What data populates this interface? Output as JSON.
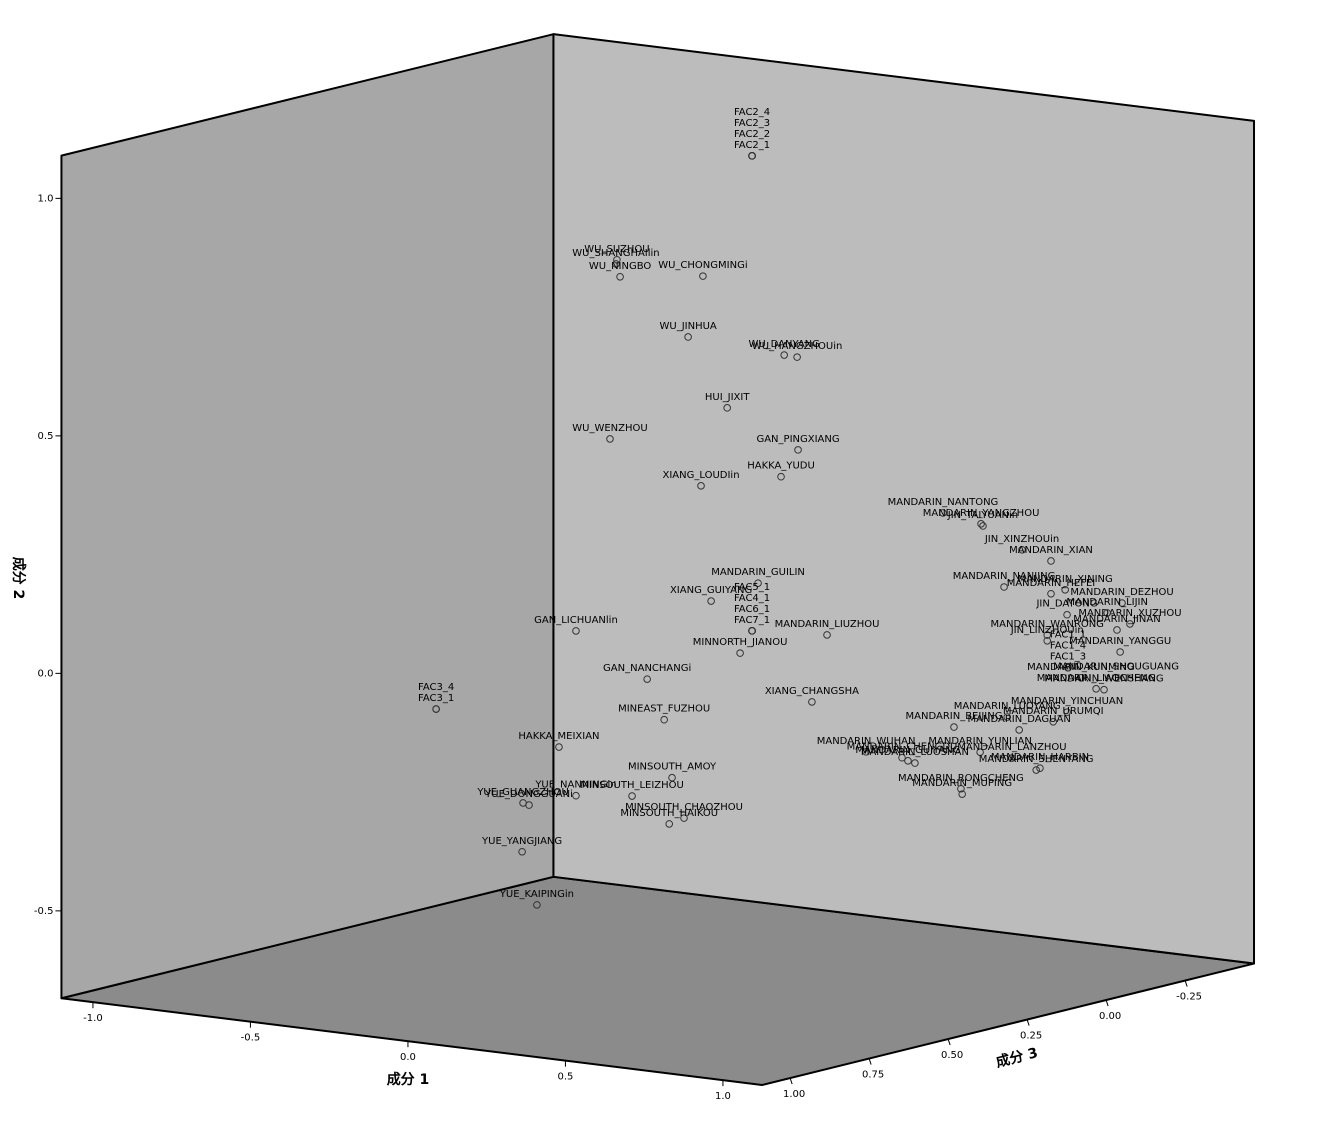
{
  "chart_data": {
    "type": "scatter3d",
    "x_label": "成分 1",
    "y_label": "成分 2",
    "z_label": "成分 3",
    "xlim": [
      -1.1,
      1.124
    ],
    "ylim": [
      -0.684,
      1.09
    ],
    "zlim": [
      -0.468,
      1.089
    ],
    "xticks": [
      {
        "value": -1.0,
        "label": "-1.0"
      },
      -0.5,
      {
        "value": 0.0,
        "label": "0.0"
      },
      0.5,
      {
        "value": 1.0,
        "label": "1.0"
      }
    ],
    "yticks": [
      {
        "value": -0.5,
        "label": "-0.5"
      },
      {
        "value": 0.0,
        "label": "0.0"
      },
      0.5,
      {
        "value": 1.0,
        "label": "1.0"
      }
    ],
    "zticks": [
      {
        "value": -0.25,
        "label": "-0.25"
      },
      {
        "value": 0.0,
        "label": "0.00"
      },
      0.25,
      {
        "value": 0.5,
        "label": "0.50"
      },
      0.75,
      {
        "value": 1.0,
        "label": "1.00"
      }
    ],
    "wall_colors": {
      "left": "#a7a7a7",
      "back": "#bcbcbc",
      "floor": "#8b8b8b"
    },
    "marker_color": "#333333",
    "labels": [
      "FAC2_1",
      "FAC2_2",
      "FAC2_3",
      "FAC2_4",
      "WU_SUZHOU",
      "WU_SHANGHAIlin",
      "WU_NINGBO",
      "WU_CHONGMINGi",
      "WU_JINHUA",
      "WU_DANYANG",
      "WU_HANGZHOUin",
      "HUI_JIXIT",
      "WU_WENZHOU",
      "GAN_PINGXIANG",
      "HAKKA_YUDU",
      "XIANG_LOUDIin",
      "MANDARIN_NANTONG",
      "MANDARIN_YANGZHOU",
      "JIN_TAIYUANin",
      "JIN_XINZHOUin",
      "MANDARIN_XIAN",
      "MANDARIN_GUILIN",
      "XIANG_GUIYANG",
      "MANDARIN_NANJING",
      "MANDARIN_XINING",
      "MANDARIN_HEFEI",
      "MANDARIN_DEZHOU",
      "MANDARIN_XUZHOU",
      "MANDARIN_LIJIN",
      "JIN_DATONG",
      "MANDARIN_JINAN",
      "MANDARIN_YANGGU",
      "GAN_LICHUANlin",
      "FAC7_1",
      "FAC6_1",
      "FAC4_1",
      "FAC5_1",
      "MINNORTH_JIANOU",
      "MANDARIN_LIUZHOU",
      "MANDARIN_WANRONG",
      "JIN_LINZHOUin",
      "GAN_NANCHANGi",
      "FAC1_3",
      "FAC1_4",
      "FAC1_1",
      "MANDARIN_KUNMING",
      "MANDARIN_SHOUGUANG",
      "MANDARIN_LIAOCHENG",
      "MANDARIN_WENSHANG",
      "XIANG_CHANGSHA",
      "FAC3_1",
      "FAC3_4",
      "MINEAST_FUZHOU",
      "MANDARIN_LUOYANG",
      "MANDARIN_YINCHUAN",
      "MANDARIN_URUMQI",
      "MANDARIN_BEIJING",
      "MANDARIN_DAGUAN",
      "MANDARIN_YUNLIAN",
      "MANDARIN_LANZHOU",
      "HAKKA_MEIXIAN",
      "MANDARIN_WUHAN",
      "MANDARIN_CHENGDU",
      "MANDARIN_GUIYANG",
      "MANDARIN_LUOSHAN",
      "MANDARIN_HARBIN",
      "MANDARIN_SHENYANG",
      "MINSOUTH_AMOY",
      "YUE_NANNINGin",
      "MINSOUTH_LEIZHOU",
      "MANDARIN_RONGCHENG",
      "MANDARIN_MUPING",
      "YUE_GUANGZHOU",
      "YUE_DONGGUANi",
      "MINSOUTH_CHAOZHOU",
      "MINSOUTH_HAIKOU",
      "YUE_YANGJIANG",
      "YUE_KAIPINGin"
    ],
    "x": [
      0,
      0,
      0,
      0,
      -0.429,
      -0.432,
      -0.419,
      -0.156,
      -0.203,
      0.102,
      0.143,
      -0.079,
      -0.451,
      0.146,
      0.092,
      -0.162,
      0.606,
      0.727,
      0.733,
      0.857,
      0.949,
      0.019,
      -0.13,
      0.8,
      0.994,
      0.949,
      1,
      1,
      1,
      1,
      1,
      1,
      -0.559,
      0,
      0,
      0,
      0,
      -0.038,
      0.238,
      0.937,
      0.937,
      -0.333,
      1,
      1,
      1,
      1,
      1,
      1,
      1,
      0.19,
      -1.003,
      -1.003,
      -0.279,
      0.81,
      1,
      0.956,
      0.641,
      0.848,
      0.724,
      0.825,
      -0.613,
      0.362,
      0.476,
      0.495,
      0.517,
      0.914,
      0.902,
      -0.254,
      -0.559,
      -0.381,
      0.663,
      0.667,
      -0.727,
      -0.708,
      -0.216,
      -0.263,
      -0.73,
      -0.683
    ],
    "y": [
      1.001,
      1.001,
      1.001,
      1.001,
      0.747,
      0.738,
      0.712,
      0.735,
      0.603,
      0.59,
      0.589,
      0.464,
      0.368,
      0.394,
      0.333,
      0.293,
      0.299,
      0.286,
      0.282,
      0.242,
      0.226,
      0.103,
      0.053,
      0.159,
      0.169,
      0.157,
      0.113,
      0.065,
      0.1,
      0.117,
      0.059,
      0.011,
      -0.045,
      0.001,
      0.001,
      0.001,
      0.001,
      -0.049,
      0.012,
      0.069,
      0.057,
      -0.128,
      0.005,
      0.005,
      0.005,
      -0.023,
      -0.041,
      -0.054,
      -0.06,
      -0.133,
      -0.246,
      -0.246,
      -0.209,
      -0.114,
      -0.088,
      -0.112,
      -0.149,
      -0.138,
      -0.195,
      -0.199,
      -0.294,
      -0.224,
      -0.227,
      -0.232,
      -0.235,
      -0.213,
      -0.218,
      -0.329,
      -0.392,
      -0.378,
      -0.277,
      -0.288,
      -0.421,
      -0.424,
      -0.411,
      -0.427,
      -0.524,
      -0.632
    ],
    "z": [
      0,
      0,
      0,
      0,
      0,
      0,
      0,
      0,
      0,
      0,
      0,
      0,
      0,
      0,
      0,
      0,
      0,
      0,
      0,
      0,
      0,
      0,
      0,
      0,
      0,
      0,
      -0.174,
      -0.199,
      -0.127,
      0,
      -0.158,
      -0.168,
      0,
      0,
      0,
      0,
      0,
      0,
      0,
      0,
      0,
      0,
      -0.003,
      -0.003,
      -0.003,
      -0.044,
      -0.155,
      -0.092,
      -0.117,
      0,
      0,
      0,
      0,
      0,
      0,
      0,
      0,
      0,
      0,
      0,
      0,
      0,
      0,
      0,
      0,
      0,
      0,
      0,
      0,
      0,
      0,
      0,
      0,
      0,
      0,
      0,
      0,
      0
    ]
  }
}
